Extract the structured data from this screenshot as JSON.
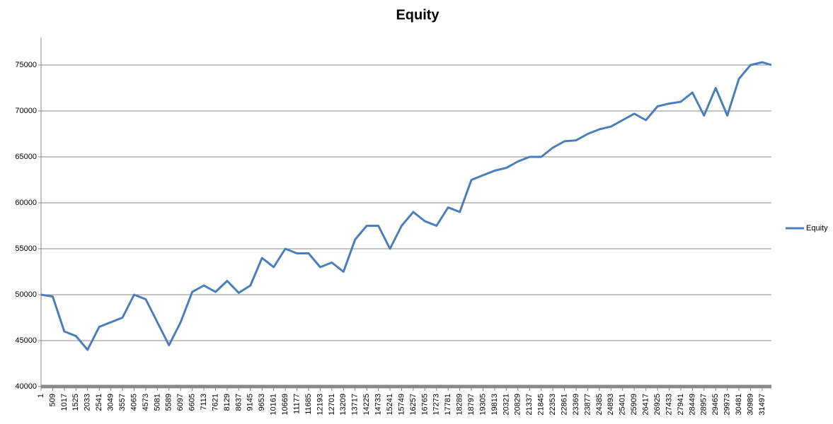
{
  "chart_data": {
    "type": "line",
    "title": "Equity",
    "x": [
      1,
      509,
      1017,
      1525,
      2033,
      2541,
      3049,
      3557,
      4065,
      4573,
      5081,
      5589,
      6097,
      6605,
      7113,
      7621,
      8129,
      8637,
      9145,
      9653,
      10161,
      10669,
      11177,
      11685,
      12193,
      12701,
      13209,
      13717,
      14225,
      14733,
      15241,
      15749,
      16257,
      16765,
      17273,
      17781,
      18289,
      18797,
      19305,
      19813,
      20321,
      20829,
      21337,
      21845,
      22353,
      22861,
      23369,
      23877,
      24385,
      24893,
      25401,
      25909,
      26417,
      26925,
      27433,
      27941,
      28449,
      28957,
      29465,
      29973,
      30481,
      30989,
      31497,
      31900
    ],
    "series": [
      {
        "name": "Equity",
        "color": "#4a7ebb",
        "values": [
          50000,
          49800,
          46000,
          45500,
          44000,
          46500,
          47000,
          47500,
          50000,
          49500,
          47000,
          44500,
          47000,
          50300,
          51000,
          50300,
          51500,
          50200,
          51000,
          54000,
          53000,
          55000,
          54500,
          54500,
          53000,
          53500,
          52500,
          56000,
          57500,
          57500,
          55000,
          57500,
          59000,
          58000,
          57500,
          59500,
          59000,
          62500,
          63000,
          63500,
          63800,
          64500,
          65000,
          65000,
          66000,
          66700,
          66800,
          67500,
          68000,
          68300,
          69000,
          69700,
          69000,
          70500,
          70800,
          71000,
          72000,
          69500,
          72500,
          69500,
          73500,
          75000,
          75300,
          75000
        ]
      }
    ],
    "xlim": [
      1,
      31900
    ],
    "xticks": [
      1,
      509,
      1017,
      1525,
      2033,
      2541,
      3049,
      3557,
      4065,
      4573,
      5081,
      5589,
      6097,
      6605,
      7113,
      7621,
      8129,
      8637,
      9145,
      9653,
      10161,
      10669,
      11177,
      11685,
      12193,
      12701,
      13209,
      13717,
      14225,
      14733,
      15241,
      15749,
      16257,
      16765,
      17273,
      17781,
      18289,
      18797,
      19305,
      19813,
      20321,
      20829,
      21337,
      21845,
      22353,
      22861,
      23369,
      23877,
      24385,
      24893,
      25401,
      25909,
      26417,
      26925,
      27433,
      27941,
      28449,
      28957,
      29465,
      29973,
      30481,
      30989,
      31497
    ],
    "ylim": [
      40000,
      78000
    ],
    "yticks": [
      40000,
      45000,
      50000,
      55000,
      60000,
      65000,
      70000,
      75000
    ],
    "grid": true,
    "legend": "right"
  }
}
